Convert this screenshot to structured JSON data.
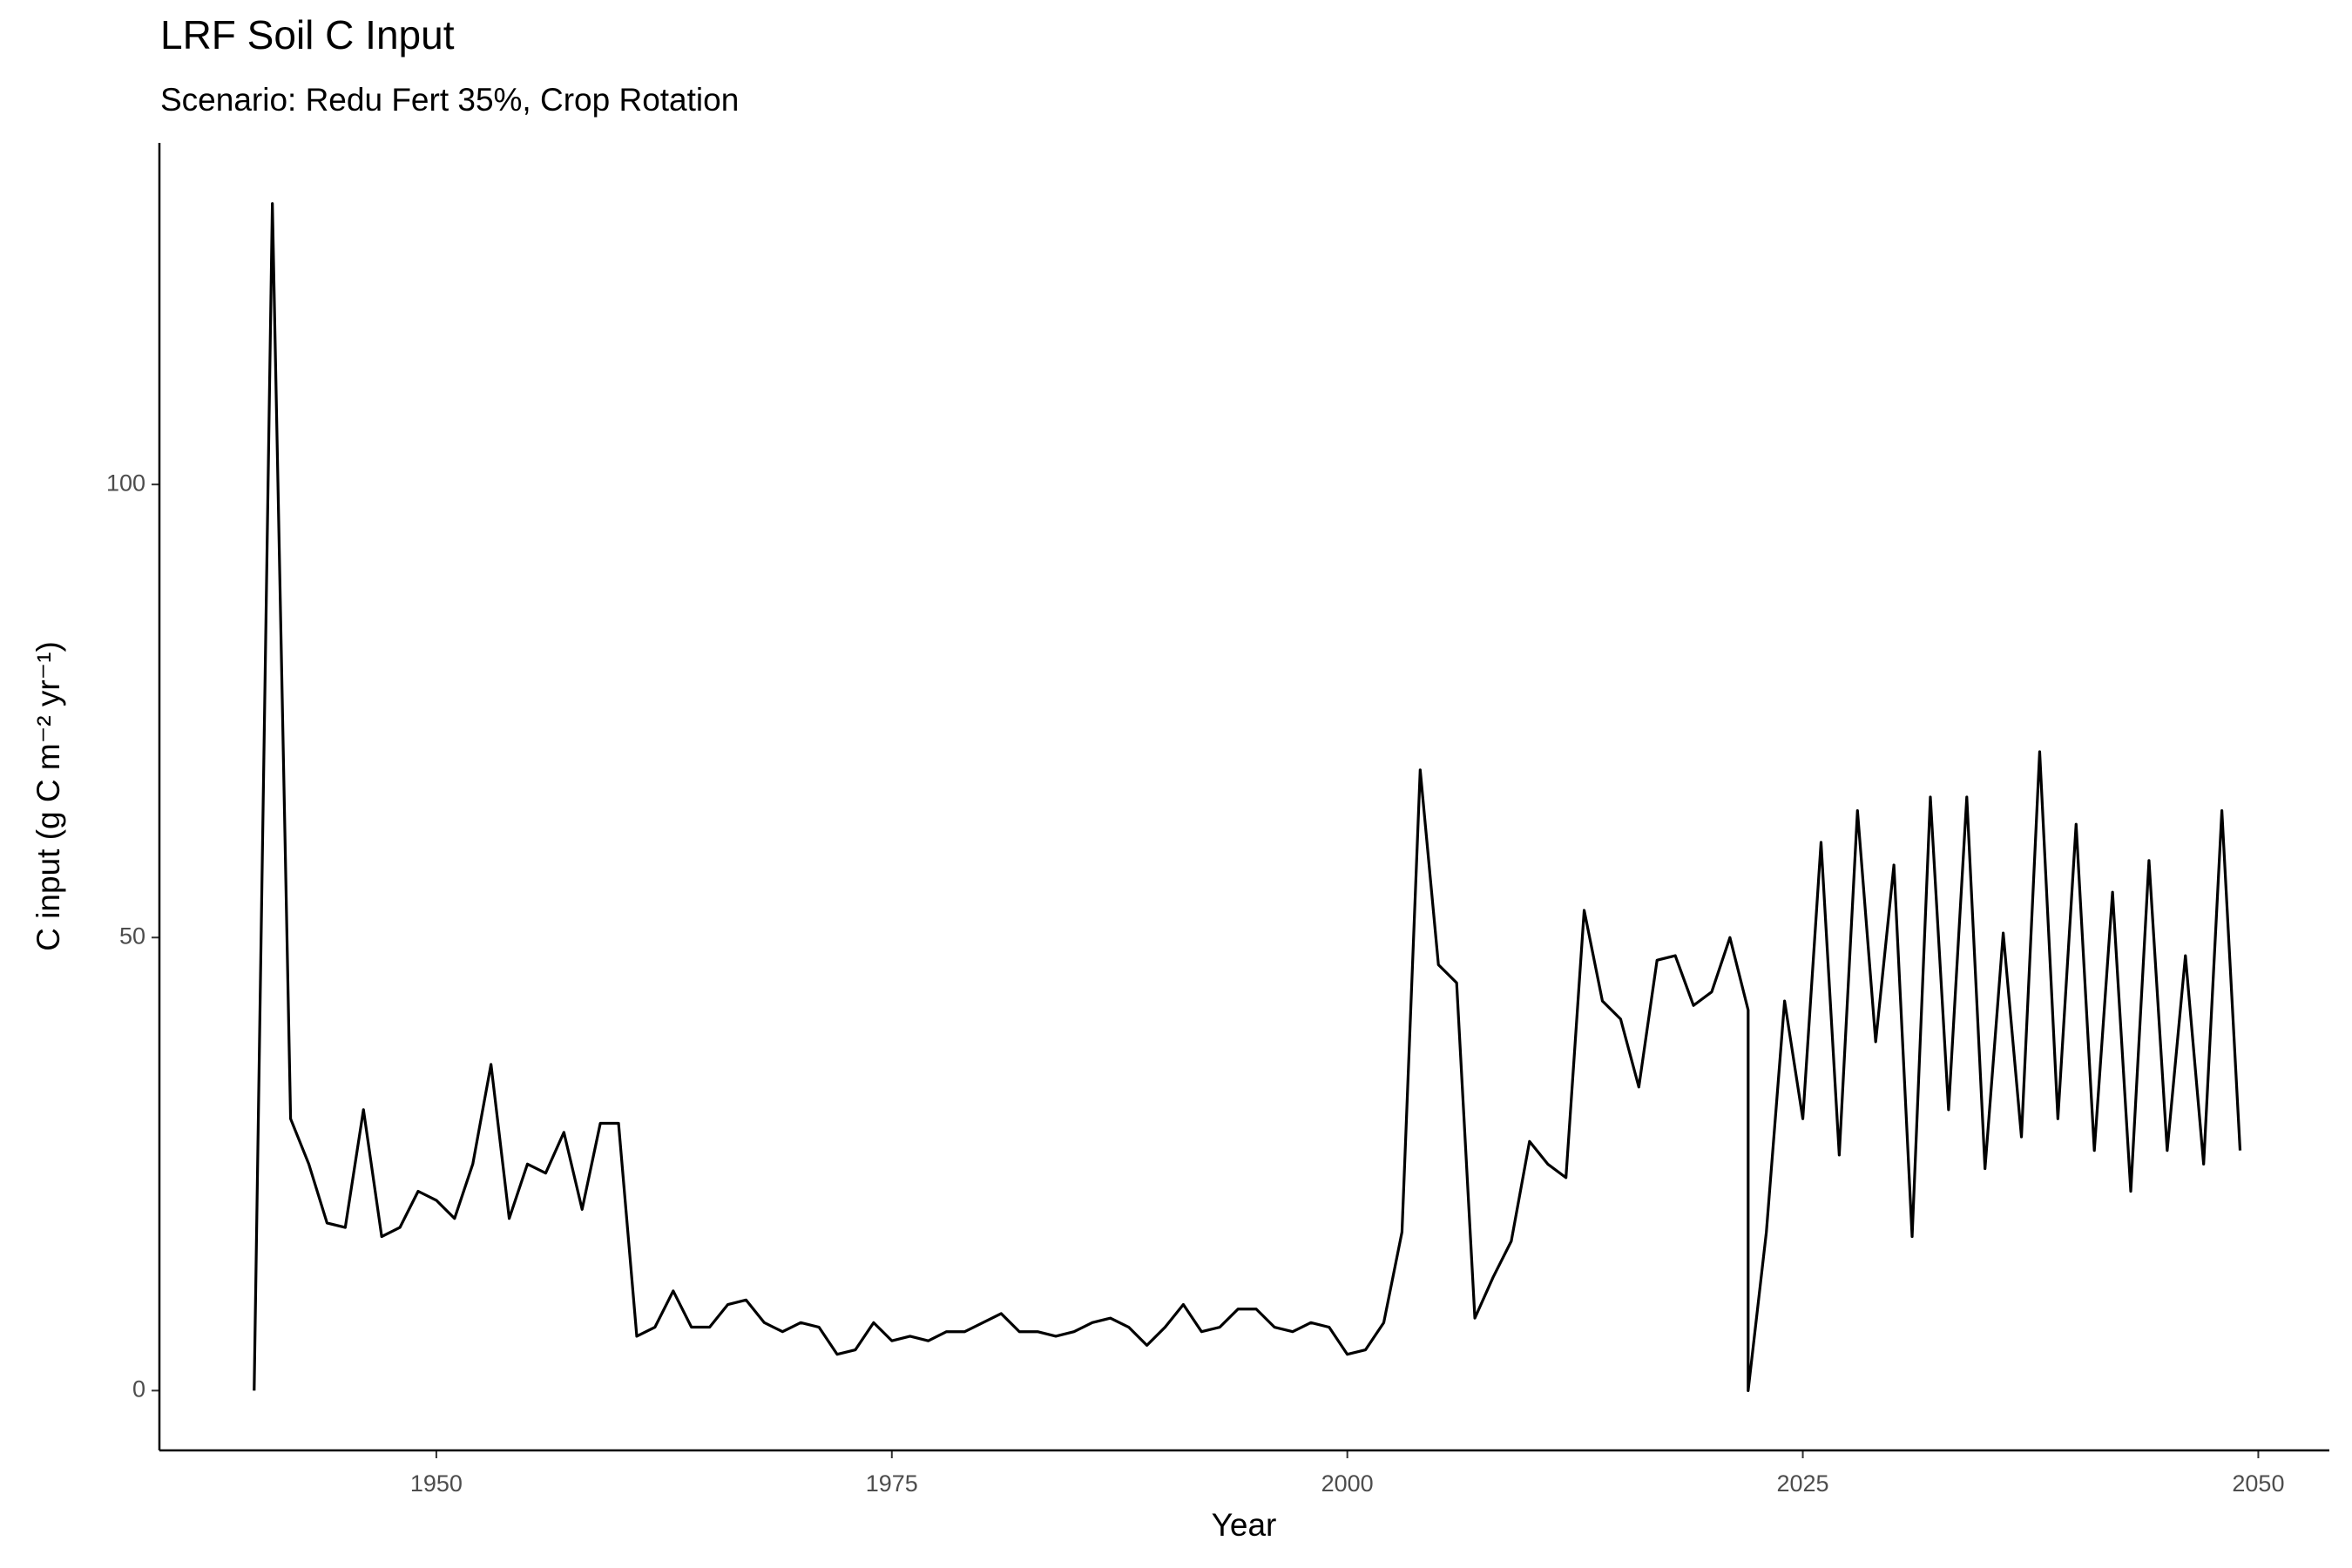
{
  "chart_data": {
    "type": "line",
    "title": "LRF Soil C Input",
    "subtitle": "Scenario: Redu Fert 35%, Crop Rotation",
    "x_label": "Year",
    "y_label": "C input (g C m⁻² yr⁻¹)",
    "x": [
      1940,
      1941,
      1942,
      1943,
      1944,
      1945,
      1946,
      1947,
      1948,
      1949,
      1950,
      1951,
      1952,
      1953,
      1954,
      1955,
      1956,
      1957,
      1958,
      1959,
      1960,
      1961,
      1962,
      1963,
      1964,
      1965,
      1966,
      1967,
      1968,
      1969,
      1970,
      1971,
      1972,
      1973,
      1974,
      1975,
      1976,
      1977,
      1978,
      1979,
      1980,
      1981,
      1982,
      1983,
      1984,
      1985,
      1986,
      1987,
      1988,
      1989,
      1990,
      1991,
      1992,
      1993,
      1994,
      1995,
      1996,
      1997,
      1998,
      1999,
      2000,
      2001,
      2002,
      2003,
      2004,
      2005,
      2006,
      2007,
      2008,
      2009,
      2010,
      2011,
      2012,
      2013,
      2014,
      2015,
      2016,
      2017,
      2018,
      2019,
      2020,
      2021,
      2022,
      2022,
      2023,
      2024,
      2025,
      2026,
      2027,
      2028,
      2029,
      2030,
      2031,
      2032,
      2033,
      2034,
      2035,
      2036,
      2037,
      2038,
      2039,
      2040,
      2041,
      2042,
      2043,
      2044,
      2045,
      2046,
      2047,
      2048,
      2049
    ],
    "series": [
      {
        "name": "C input",
        "color": "#000000",
        "values": [
          0,
          131,
          30,
          25,
          18.5,
          18,
          31,
          17,
          18,
          22,
          21,
          19,
          25,
          36,
          19,
          25,
          24,
          28.5,
          20,
          29.5,
          29.5,
          6,
          7,
          11,
          7,
          7,
          9.5,
          10,
          7.5,
          6.5,
          7.5,
          7,
          4,
          4.5,
          7.5,
          5.5,
          6,
          5.5,
          6.5,
          6.5,
          7.5,
          8.5,
          6.5,
          6.5,
          6,
          6.5,
          7.5,
          8,
          7,
          5,
          7,
          9.5,
          6.5,
          7,
          9,
          9,
          7,
          6.5,
          7.5,
          7,
          4,
          4.5,
          7.5,
          17.5,
          68.5,
          47,
          45,
          8,
          12.5,
          16.5,
          27.5,
          25,
          23.5,
          53,
          43,
          41,
          33.5,
          47.5,
          48,
          42.5,
          44,
          50,
          42,
          0,
          17.5,
          43,
          30,
          60.5,
          26,
          64,
          38.5,
          58,
          17,
          65.5,
          31,
          65.5,
          24.5,
          50.5,
          28,
          70.5,
          30,
          62.5,
          26.5,
          55,
          22,
          58.5,
          26.5,
          48,
          25,
          64,
          26.5
        ]
      }
    ],
    "xlim": [
      1934.8,
      2053.9
    ],
    "ylim": [
      -6.6,
      137.7
    ],
    "xticks": [
      1950,
      1975,
      2000,
      2025,
      2050
    ],
    "yticks": [
      0,
      50,
      100
    ],
    "grid": false
  }
}
